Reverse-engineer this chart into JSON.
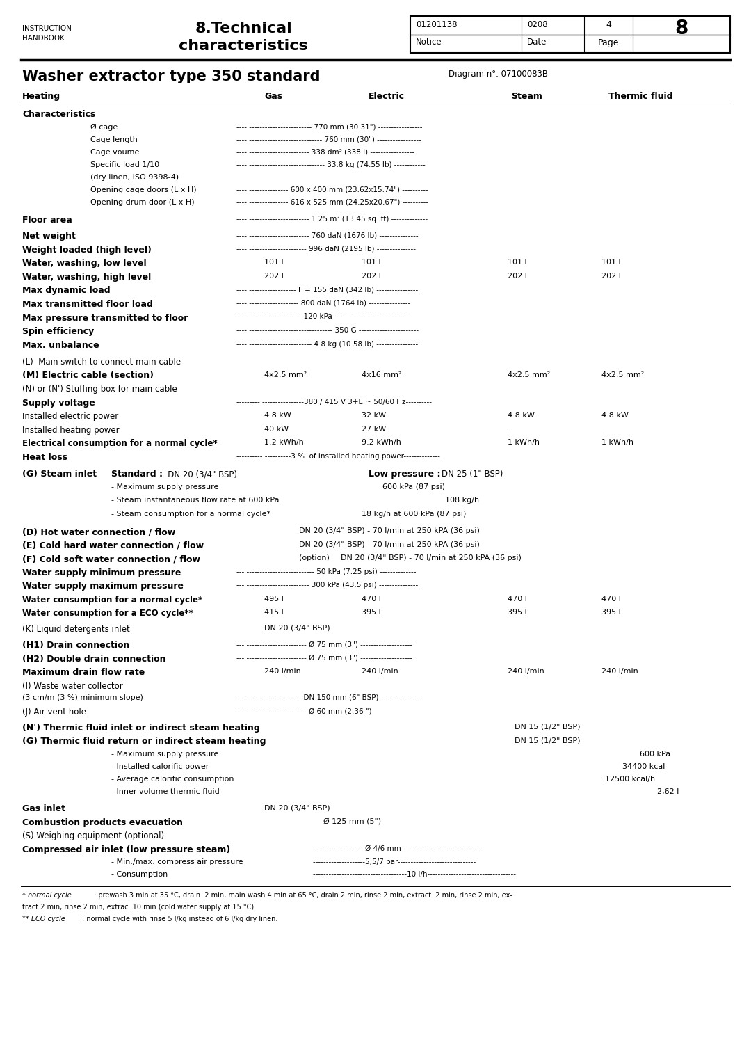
{
  "bg_color": "#ffffff",
  "page_width": 10.8,
  "page_height": 15.28,
  "header_left1": "INSTRUCTION",
  "header_left2": "HANDBOOK",
  "header_center1": "8.Technical",
  "header_center2": "characteristics",
  "tbl_row1": [
    "01201138",
    "0208",
    "4"
  ],
  "tbl_row2": [
    "Notice",
    "Date",
    "Page"
  ],
  "tbl_page": "8",
  "section_title": "Washer extractor type 350 standard",
  "diagram_ref": "Diagram n°. 07100083B",
  "footnote1a": "* normal cycle : prewash 3 min at 35 °C, drain. 2 min, main wash 4 min at 65 °C, drain 2 min, rinse 2 min, extract. 2 min, rinse 2 min, ex-",
  "footnote1b": "tract 2 min, rinse 2 min, extrac. 10 min (cold water supply at 15 °C).",
  "footnote2": "** ECO cycle : normal cycle with rinse 5 l/kg instead of 6 l/kg dry linen."
}
